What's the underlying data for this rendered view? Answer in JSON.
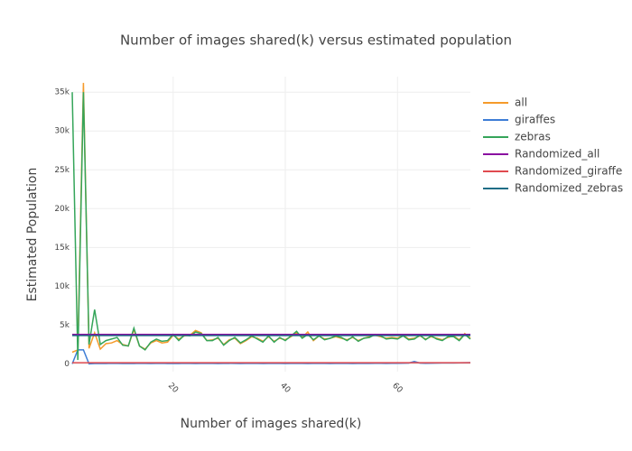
{
  "chart_data": {
    "type": "line",
    "title": "Number of images shared(k) versus estimated population",
    "x_label": "Number of images shared(k)",
    "y_label": "Estimated Population",
    "x": [
      2,
      3,
      4,
      5,
      6,
      7,
      8,
      9,
      10,
      11,
      12,
      13,
      14,
      15,
      16,
      17,
      18,
      19,
      20,
      21,
      22,
      23,
      24,
      25,
      26,
      27,
      28,
      29,
      30,
      31,
      32,
      33,
      34,
      35,
      36,
      37,
      38,
      39,
      40,
      41,
      42,
      43,
      44,
      45,
      46,
      47,
      48,
      49,
      50,
      51,
      52,
      53,
      54,
      55,
      56,
      57,
      58,
      59,
      60,
      61,
      62,
      63,
      64,
      65,
      66,
      67,
      68,
      69,
      70,
      71,
      72,
      73
    ],
    "xlim": [
      2,
      73
    ],
    "xticks": [
      20,
      40,
      60
    ],
    "ylim": [
      -1000,
      37000
    ],
    "yticks": [
      0,
      {
        "value": 5000,
        "label": "5k"
      },
      {
        "value": 10000,
        "label": "10k"
      },
      {
        "value": 15000,
        "label": "15k"
      },
      {
        "value": 20000,
        "label": "20k"
      },
      {
        "value": 25000,
        "label": "25k"
      },
      {
        "value": 30000,
        "label": "30k"
      },
      {
        "value": 35000,
        "label": "35k"
      }
    ],
    "grid": true,
    "legend": "right",
    "series": [
      {
        "name": "all",
        "color": "#f59a2a",
        "values": [
          1500,
          1800,
          36200,
          2000,
          4000,
          1900,
          2600,
          2700,
          3000,
          2500,
          2300,
          4400,
          2300,
          1900,
          2700,
          3000,
          2700,
          2800,
          3700,
          3200,
          3600,
          3700,
          4300,
          4000,
          3000,
          3100,
          3300,
          2500,
          3100,
          3300,
          2600,
          3000,
          3500,
          3300,
          2900,
          3500,
          2900,
          3300,
          3100,
          3500,
          4000,
          3400,
          4100,
          3000,
          3600,
          3200,
          3300,
          3500,
          3300,
          3100,
          3400,
          3000,
          3300,
          3500,
          3700,
          3500,
          3300,
          3400,
          3300,
          3700,
          3200,
          3300,
          3600,
          3200,
          3500,
          3300,
          3100,
          3400,
          3600,
          3100,
          3900,
          3300
        ]
      },
      {
        "name": "giraffes",
        "color": "#3d7dd6",
        "values": [
          0,
          1800,
          1800,
          0,
          50,
          60,
          50,
          70,
          60,
          50,
          60,
          50,
          70,
          60,
          50,
          60,
          70,
          50,
          60,
          50,
          80,
          60,
          50,
          60,
          70,
          60,
          50,
          60,
          70,
          60,
          50,
          60,
          70,
          60,
          50,
          60,
          70,
          60,
          50,
          60,
          70,
          60,
          50,
          60,
          70,
          60,
          50,
          60,
          70,
          60,
          50,
          60,
          70,
          60,
          80,
          70,
          60,
          70,
          80,
          90,
          100,
          300,
          100,
          80,
          90,
          100,
          110,
          120,
          110,
          130,
          150,
          160
        ]
      },
      {
        "name": "zebras",
        "color": "#35a55a",
        "values": [
          35000,
          500,
          35000,
          2500,
          7000,
          2500,
          3000,
          3200,
          3400,
          2400,
          2300,
          4600,
          2300,
          1800,
          2800,
          3200,
          2900,
          3000,
          3800,
          3000,
          3700,
          3600,
          4100,
          3900,
          3000,
          3000,
          3400,
          2400,
          3000,
          3400,
          2700,
          3100,
          3600,
          3200,
          2800,
          3600,
          2800,
          3400,
          3000,
          3600,
          4200,
          3300,
          3800,
          3100,
          3600,
          3100,
          3300,
          3600,
          3400,
          3000,
          3500,
          2900,
          3300,
          3400,
          3800,
          3600,
          3200,
          3300,
          3200,
          3600,
          3100,
          3200,
          3700,
          3100,
          3600,
          3200,
          3000,
          3500,
          3500,
          3000,
          3800,
          3200
        ]
      },
      {
        "name": "Randomized_all",
        "color": "#8a0fa0",
        "values": [
          3800,
          3800,
          3800,
          3800,
          3800,
          3800,
          3800,
          3800,
          3800,
          3800,
          3800,
          3800,
          3800,
          3800,
          3800,
          3800,
          3800,
          3800,
          3800,
          3800,
          3800,
          3800,
          3800,
          3800,
          3800,
          3800,
          3800,
          3800,
          3800,
          3800,
          3800,
          3800,
          3800,
          3800,
          3800,
          3800,
          3800,
          3800,
          3800,
          3800,
          3800,
          3800,
          3800,
          3800,
          3800,
          3800,
          3800,
          3800,
          3800,
          3800,
          3800,
          3800,
          3800,
          3800,
          3800,
          3800,
          3800,
          3800,
          3800,
          3800,
          3800,
          3800,
          3800,
          3800,
          3800,
          3800,
          3800,
          3800,
          3800,
          3800,
          3800,
          3800
        ]
      },
      {
        "name": "Randomized_giraffe",
        "color": "#e04a4f",
        "values": [
          150,
          150,
          150,
          150,
          150,
          150,
          150,
          150,
          150,
          150,
          150,
          150,
          150,
          150,
          150,
          150,
          150,
          150,
          150,
          150,
          150,
          150,
          150,
          150,
          150,
          150,
          150,
          150,
          150,
          150,
          150,
          150,
          150,
          150,
          150,
          150,
          150,
          150,
          150,
          150,
          150,
          150,
          150,
          150,
          150,
          150,
          150,
          150,
          150,
          150,
          150,
          150,
          150,
          150,
          150,
          150,
          150,
          150,
          150,
          150,
          150,
          150,
          150,
          150,
          150,
          150,
          150,
          150,
          150,
          150,
          150,
          150
        ]
      },
      {
        "name": "Randomized_zebras",
        "color": "#1f6d86",
        "values": [
          3650,
          3650,
          3650,
          3650,
          3650,
          3650,
          3650,
          3650,
          3650,
          3650,
          3650,
          3650,
          3650,
          3650,
          3650,
          3650,
          3650,
          3650,
          3650,
          3650,
          3650,
          3650,
          3650,
          3650,
          3650,
          3650,
          3650,
          3650,
          3650,
          3650,
          3650,
          3650,
          3650,
          3650,
          3650,
          3650,
          3650,
          3650,
          3650,
          3650,
          3650,
          3650,
          3650,
          3650,
          3650,
          3650,
          3650,
          3650,
          3650,
          3650,
          3650,
          3650,
          3650,
          3650,
          3650,
          3650,
          3650,
          3650,
          3650,
          3650,
          3650,
          3650,
          3650,
          3650,
          3650,
          3650,
          3650,
          3650,
          3650,
          3650,
          3650,
          3650
        ]
      }
    ]
  }
}
